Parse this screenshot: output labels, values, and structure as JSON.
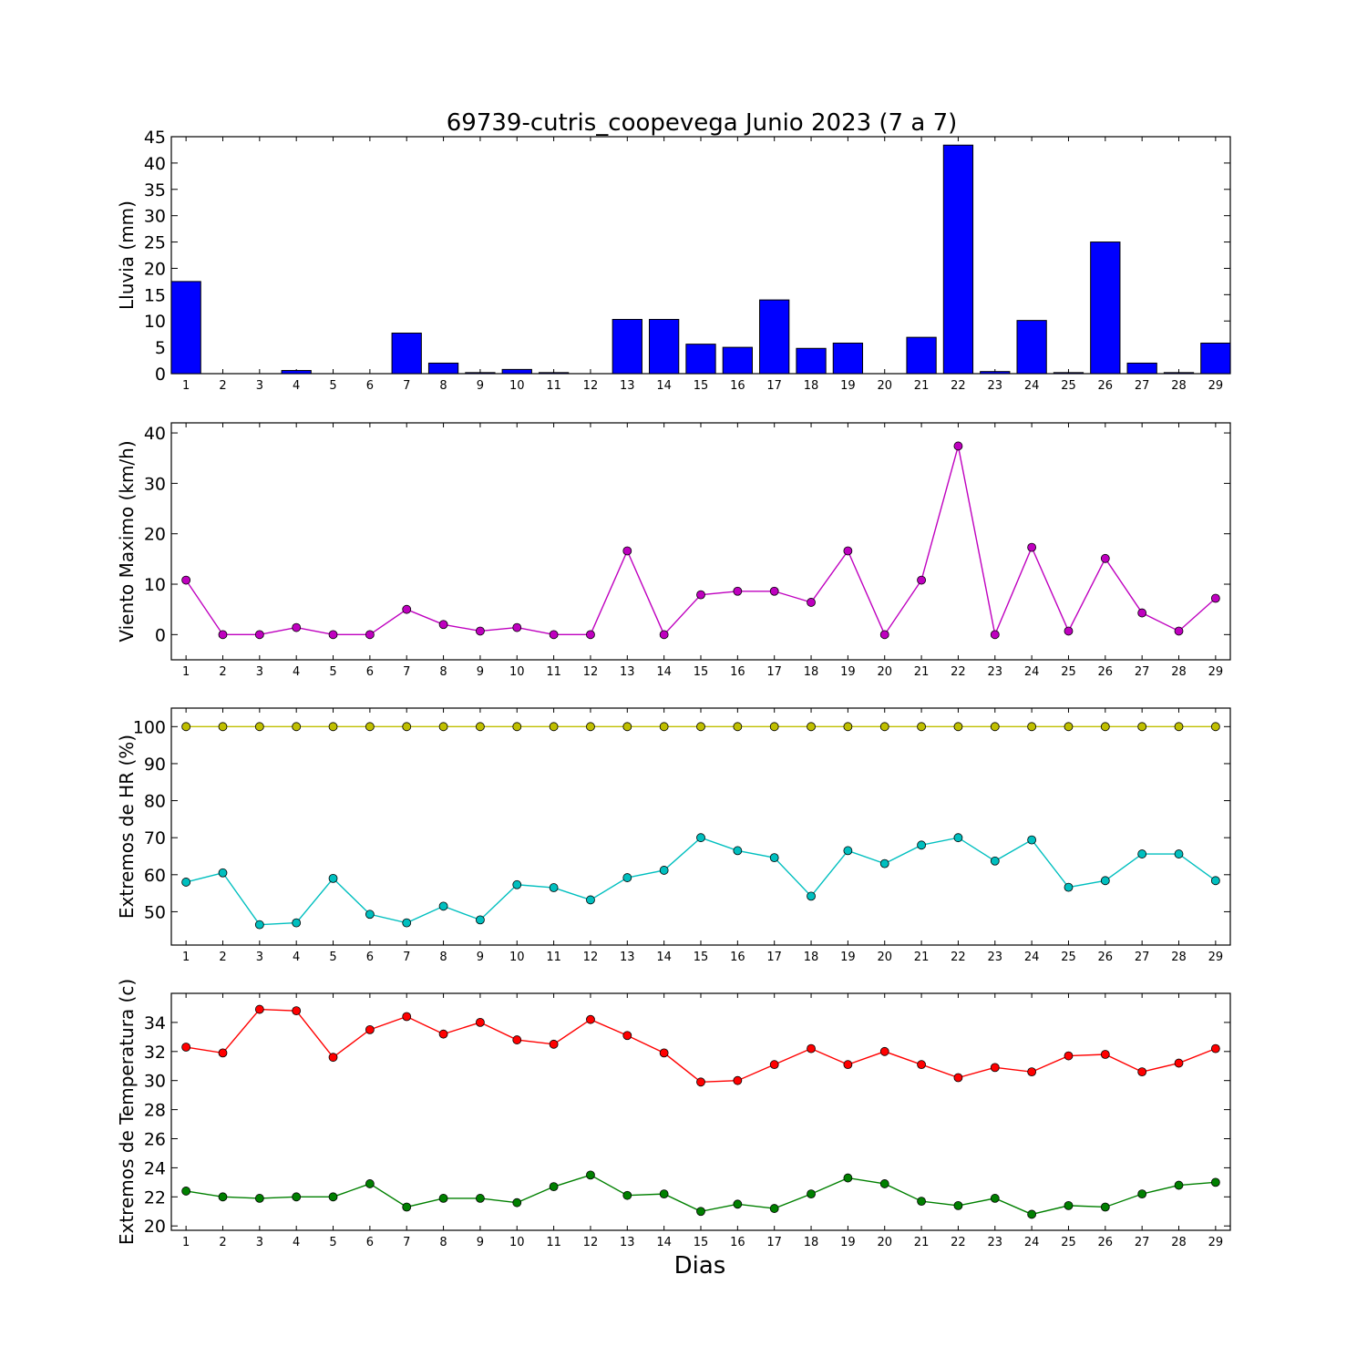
{
  "figure": {
    "title": "69739-cutris_coopevega Junio 2023  (7 a 7)",
    "xlabel": "Dias"
  },
  "chart_data": [
    {
      "type": "bar",
      "ylabel": "Lluvia (mm)",
      "categories": [
        1,
        2,
        3,
        4,
        5,
        6,
        7,
        8,
        9,
        10,
        11,
        12,
        13,
        14,
        15,
        16,
        17,
        18,
        19,
        20,
        21,
        22,
        23,
        24,
        25,
        26,
        27,
        28,
        29
      ],
      "ylim": [
        0,
        45
      ],
      "yticks": [
        0,
        5,
        10,
        15,
        20,
        25,
        30,
        35,
        40,
        45
      ],
      "series": [
        {
          "color": "#0000ff",
          "values": [
            17.5,
            0,
            0,
            0.6,
            0,
            0,
            7.7,
            2.0,
            0.2,
            0.8,
            0.2,
            0,
            10.3,
            10.3,
            5.6,
            5.0,
            14.0,
            4.8,
            5.8,
            0,
            6.9,
            43.4,
            0.4,
            10.1,
            0.2,
            25.0,
            2.0,
            0.2,
            5.8
          ]
        }
      ]
    },
    {
      "type": "line",
      "ylabel": "Viento Maximo (km/h)",
      "x": [
        1,
        2,
        3,
        4,
        5,
        6,
        7,
        8,
        9,
        10,
        11,
        12,
        13,
        14,
        15,
        16,
        17,
        18,
        19,
        20,
        21,
        22,
        23,
        24,
        25,
        26,
        27,
        28,
        29
      ],
      "ylim": [
        -5,
        42
      ],
      "yticks": [
        0,
        10,
        20,
        30,
        40
      ],
      "series": [
        {
          "color": "#bf00bf",
          "values": [
            10.8,
            0,
            0,
            1.4,
            0,
            0,
            5.0,
            2.0,
            0.7,
            1.4,
            0,
            0,
            16.6,
            0,
            7.9,
            8.6,
            8.6,
            6.4,
            16.6,
            0,
            10.8,
            37.4,
            0,
            17.3,
            0.7,
            15.1,
            4.3,
            0.7,
            7.2
          ]
        }
      ]
    },
    {
      "type": "line",
      "ylabel": "Extremos de HR (%)",
      "x": [
        1,
        2,
        3,
        4,
        5,
        6,
        7,
        8,
        9,
        10,
        11,
        12,
        13,
        14,
        15,
        16,
        17,
        18,
        19,
        20,
        21,
        22,
        23,
        24,
        25,
        26,
        27,
        28,
        29
      ],
      "ylim": [
        41,
        105
      ],
      "yticks": [
        50,
        60,
        70,
        80,
        90,
        100
      ],
      "series": [
        {
          "color": "#bfbf00",
          "values": [
            100,
            100,
            100,
            100,
            100,
            100,
            100,
            100,
            100,
            100,
            100,
            100,
            100,
            100,
            100,
            100,
            100,
            100,
            100,
            100,
            100,
            100,
            100,
            100,
            100,
            100,
            100,
            100,
            100
          ]
        },
        {
          "color": "#00bfbf",
          "values": [
            58,
            60.5,
            46.5,
            47,
            59,
            49.3,
            47,
            51.5,
            47.8,
            57.3,
            56.5,
            53.2,
            59.2,
            61.2,
            70,
            66.5,
            64.6,
            54.2,
            66.5,
            63,
            68,
            70,
            63.7,
            69.4,
            56.6,
            58.4,
            65.6,
            65.6,
            58.4
          ]
        }
      ]
    },
    {
      "type": "line",
      "ylabel": "Extremos de Temperatura (c)",
      "x": [
        1,
        2,
        3,
        4,
        5,
        6,
        7,
        8,
        9,
        10,
        11,
        12,
        13,
        14,
        15,
        16,
        17,
        18,
        19,
        20,
        21,
        22,
        23,
        24,
        25,
        26,
        27,
        28,
        29
      ],
      "ylim": [
        19.7,
        36.0
      ],
      "yticks": [
        20,
        22,
        24,
        26,
        28,
        30,
        32,
        34
      ],
      "series": [
        {
          "color": "#ff0000",
          "values": [
            32.3,
            31.9,
            34.9,
            34.8,
            31.6,
            33.5,
            34.4,
            33.2,
            34.0,
            32.8,
            32.5,
            34.2,
            33.1,
            31.9,
            29.9,
            30.0,
            31.1,
            32.2,
            31.1,
            32.0,
            31.1,
            30.2,
            30.9,
            30.6,
            31.7,
            31.8,
            30.6,
            31.2,
            32.2
          ]
        },
        {
          "color": "#008000",
          "values": [
            22.4,
            22.0,
            21.9,
            22.0,
            22.0,
            22.9,
            21.3,
            21.9,
            21.9,
            21.6,
            22.7,
            23.5,
            22.1,
            22.2,
            21.0,
            21.5,
            21.2,
            22.2,
            23.3,
            22.9,
            21.7,
            21.4,
            21.9,
            20.8,
            21.4,
            21.3,
            22.2,
            22.8,
            23.0
          ]
        }
      ]
    }
  ]
}
